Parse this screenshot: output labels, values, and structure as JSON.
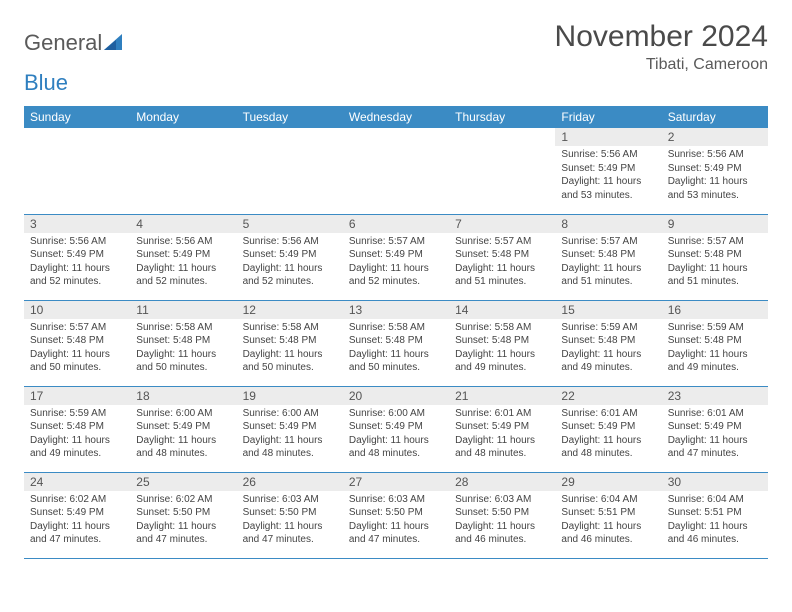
{
  "logo": {
    "word1": "General",
    "word2": "Blue"
  },
  "title": "November 2024",
  "location": "Tibati, Cameroon",
  "colors": {
    "header_bg": "#3b8bc4",
    "header_text": "#ffffff",
    "daynum_bg": "#ececec",
    "text": "#444444",
    "rule": "#3b8bc4"
  },
  "weekdays": [
    "Sunday",
    "Monday",
    "Tuesday",
    "Wednesday",
    "Thursday",
    "Friday",
    "Saturday"
  ],
  "weeks": [
    [
      {
        "n": "",
        "sr": "",
        "ss": "",
        "dl": ""
      },
      {
        "n": "",
        "sr": "",
        "ss": "",
        "dl": ""
      },
      {
        "n": "",
        "sr": "",
        "ss": "",
        "dl": ""
      },
      {
        "n": "",
        "sr": "",
        "ss": "",
        "dl": ""
      },
      {
        "n": "",
        "sr": "",
        "ss": "",
        "dl": ""
      },
      {
        "n": "1",
        "sr": "Sunrise: 5:56 AM",
        "ss": "Sunset: 5:49 PM",
        "dl": "Daylight: 11 hours and 53 minutes."
      },
      {
        "n": "2",
        "sr": "Sunrise: 5:56 AM",
        "ss": "Sunset: 5:49 PM",
        "dl": "Daylight: 11 hours and 53 minutes."
      }
    ],
    [
      {
        "n": "3",
        "sr": "Sunrise: 5:56 AM",
        "ss": "Sunset: 5:49 PM",
        "dl": "Daylight: 11 hours and 52 minutes."
      },
      {
        "n": "4",
        "sr": "Sunrise: 5:56 AM",
        "ss": "Sunset: 5:49 PM",
        "dl": "Daylight: 11 hours and 52 minutes."
      },
      {
        "n": "5",
        "sr": "Sunrise: 5:56 AM",
        "ss": "Sunset: 5:49 PM",
        "dl": "Daylight: 11 hours and 52 minutes."
      },
      {
        "n": "6",
        "sr": "Sunrise: 5:57 AM",
        "ss": "Sunset: 5:49 PM",
        "dl": "Daylight: 11 hours and 52 minutes."
      },
      {
        "n": "7",
        "sr": "Sunrise: 5:57 AM",
        "ss": "Sunset: 5:48 PM",
        "dl": "Daylight: 11 hours and 51 minutes."
      },
      {
        "n": "8",
        "sr": "Sunrise: 5:57 AM",
        "ss": "Sunset: 5:48 PM",
        "dl": "Daylight: 11 hours and 51 minutes."
      },
      {
        "n": "9",
        "sr": "Sunrise: 5:57 AM",
        "ss": "Sunset: 5:48 PM",
        "dl": "Daylight: 11 hours and 51 minutes."
      }
    ],
    [
      {
        "n": "10",
        "sr": "Sunrise: 5:57 AM",
        "ss": "Sunset: 5:48 PM",
        "dl": "Daylight: 11 hours and 50 minutes."
      },
      {
        "n": "11",
        "sr": "Sunrise: 5:58 AM",
        "ss": "Sunset: 5:48 PM",
        "dl": "Daylight: 11 hours and 50 minutes."
      },
      {
        "n": "12",
        "sr": "Sunrise: 5:58 AM",
        "ss": "Sunset: 5:48 PM",
        "dl": "Daylight: 11 hours and 50 minutes."
      },
      {
        "n": "13",
        "sr": "Sunrise: 5:58 AM",
        "ss": "Sunset: 5:48 PM",
        "dl": "Daylight: 11 hours and 50 minutes."
      },
      {
        "n": "14",
        "sr": "Sunrise: 5:58 AM",
        "ss": "Sunset: 5:48 PM",
        "dl": "Daylight: 11 hours and 49 minutes."
      },
      {
        "n": "15",
        "sr": "Sunrise: 5:59 AM",
        "ss": "Sunset: 5:48 PM",
        "dl": "Daylight: 11 hours and 49 minutes."
      },
      {
        "n": "16",
        "sr": "Sunrise: 5:59 AM",
        "ss": "Sunset: 5:48 PM",
        "dl": "Daylight: 11 hours and 49 minutes."
      }
    ],
    [
      {
        "n": "17",
        "sr": "Sunrise: 5:59 AM",
        "ss": "Sunset: 5:48 PM",
        "dl": "Daylight: 11 hours and 49 minutes."
      },
      {
        "n": "18",
        "sr": "Sunrise: 6:00 AM",
        "ss": "Sunset: 5:49 PM",
        "dl": "Daylight: 11 hours and 48 minutes."
      },
      {
        "n": "19",
        "sr": "Sunrise: 6:00 AM",
        "ss": "Sunset: 5:49 PM",
        "dl": "Daylight: 11 hours and 48 minutes."
      },
      {
        "n": "20",
        "sr": "Sunrise: 6:00 AM",
        "ss": "Sunset: 5:49 PM",
        "dl": "Daylight: 11 hours and 48 minutes."
      },
      {
        "n": "21",
        "sr": "Sunrise: 6:01 AM",
        "ss": "Sunset: 5:49 PM",
        "dl": "Daylight: 11 hours and 48 minutes."
      },
      {
        "n": "22",
        "sr": "Sunrise: 6:01 AM",
        "ss": "Sunset: 5:49 PM",
        "dl": "Daylight: 11 hours and 48 minutes."
      },
      {
        "n": "23",
        "sr": "Sunrise: 6:01 AM",
        "ss": "Sunset: 5:49 PM",
        "dl": "Daylight: 11 hours and 47 minutes."
      }
    ],
    [
      {
        "n": "24",
        "sr": "Sunrise: 6:02 AM",
        "ss": "Sunset: 5:49 PM",
        "dl": "Daylight: 11 hours and 47 minutes."
      },
      {
        "n": "25",
        "sr": "Sunrise: 6:02 AM",
        "ss": "Sunset: 5:50 PM",
        "dl": "Daylight: 11 hours and 47 minutes."
      },
      {
        "n": "26",
        "sr": "Sunrise: 6:03 AM",
        "ss": "Sunset: 5:50 PM",
        "dl": "Daylight: 11 hours and 47 minutes."
      },
      {
        "n": "27",
        "sr": "Sunrise: 6:03 AM",
        "ss": "Sunset: 5:50 PM",
        "dl": "Daylight: 11 hours and 47 minutes."
      },
      {
        "n": "28",
        "sr": "Sunrise: 6:03 AM",
        "ss": "Sunset: 5:50 PM",
        "dl": "Daylight: 11 hours and 46 minutes."
      },
      {
        "n": "29",
        "sr": "Sunrise: 6:04 AM",
        "ss": "Sunset: 5:51 PM",
        "dl": "Daylight: 11 hours and 46 minutes."
      },
      {
        "n": "30",
        "sr": "Sunrise: 6:04 AM",
        "ss": "Sunset: 5:51 PM",
        "dl": "Daylight: 11 hours and 46 minutes."
      }
    ]
  ]
}
